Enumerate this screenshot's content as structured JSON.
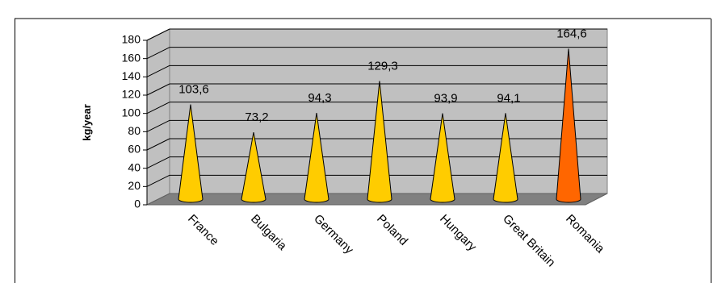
{
  "chart_data": {
    "type": "cone",
    "y_label": "kg/year",
    "categories": [
      "France",
      "Bulgaria",
      "Germany",
      "Poland",
      "Hungary",
      "Great Britain",
      "Romania"
    ],
    "values": [
      103.6,
      73.2,
      94.3,
      129.3,
      93.9,
      94.1,
      164.6
    ],
    "value_labels": [
      "103,6",
      "73,2",
      "94,3",
      "129,3",
      "93,9",
      "94,1",
      "164,6"
    ],
    "colors": [
      "#ffcc00",
      "#ffcc00",
      "#ffcc00",
      "#ffcc00",
      "#ffcc00",
      "#ffcc00",
      "#ff6600"
    ],
    "ylim": [
      0,
      180
    ],
    "yticks": [
      0,
      20,
      40,
      60,
      80,
      100,
      120,
      140,
      160,
      180
    ],
    "grid": true
  }
}
